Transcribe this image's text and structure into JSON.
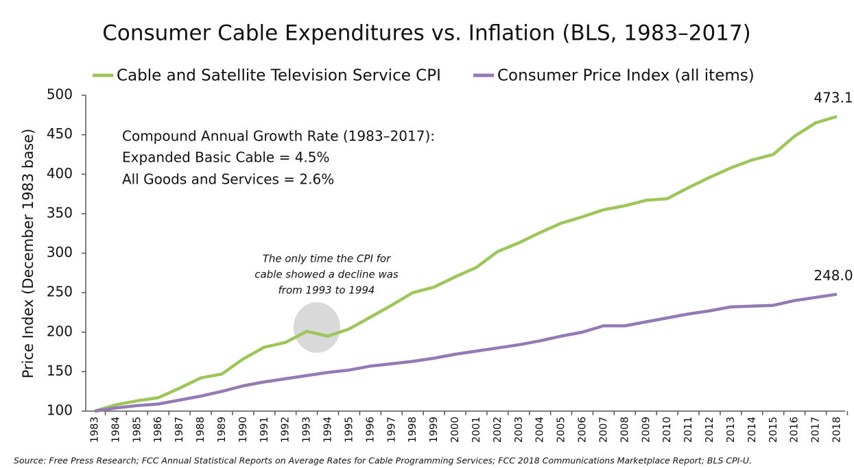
{
  "chart_data": {
    "type": "line",
    "title": "Consumer Cable Expenditures vs. Inflation (BLS, 1983–2017)",
    "y_label": "Price Index (December 1983 base)",
    "categories": [
      "1983",
      "1984",
      "1985",
      "1986",
      "1987",
      "1988",
      "1989",
      "1990",
      "1991",
      "1992",
      "1993",
      "1994",
      "1995",
      "1996",
      "1997",
      "1998",
      "1999",
      "2000",
      "2001",
      "2002",
      "2003",
      "2004",
      "2005",
      "2006",
      "2007",
      "2008",
      "2009",
      "2010",
      "2011",
      "2012",
      "2013",
      "2014",
      "2015",
      "2016",
      "2017",
      "2018"
    ],
    "series": [
      {
        "name": "Cable and Satellite Television Service CPI",
        "color": "#9dc55a",
        "values": [
          100,
          108,
          113,
          117,
          129,
          142,
          147,
          166,
          181,
          187,
          201,
          195,
          204,
          219,
          234,
          250,
          257,
          270,
          282,
          302,
          313,
          326,
          338,
          346,
          355,
          360,
          367,
          369,
          383,
          396,
          408,
          418,
          425,
          448,
          465,
          473.1
        ],
        "value_labels": [
          null,
          null,
          null,
          null,
          null,
          null,
          null,
          null,
          null,
          null,
          null,
          null,
          null,
          null,
          null,
          null,
          null,
          null,
          null,
          null,
          null,
          null,
          null,
          null,
          null,
          null,
          null,
          null,
          null,
          null,
          null,
          null,
          null,
          null,
          null,
          "473.1"
        ]
      },
      {
        "name": "Consumer Price Index (all items)",
        "color": "#9579b5",
        "values": [
          100,
          104,
          107,
          109,
          114,
          119,
          125,
          132,
          137,
          141,
          145,
          149,
          152,
          157,
          160,
          163,
          167,
          172,
          176,
          180,
          184,
          189,
          195,
          200,
          208,
          208,
          213,
          218,
          223,
          227,
          232,
          233,
          234,
          240,
          244,
          248
        ],
        "value_labels": [
          null,
          null,
          null,
          null,
          null,
          null,
          null,
          null,
          null,
          null,
          null,
          null,
          null,
          null,
          null,
          null,
          null,
          null,
          null,
          null,
          null,
          null,
          null,
          null,
          null,
          null,
          null,
          null,
          null,
          null,
          null,
          null,
          null,
          null,
          null,
          "248.0"
        ]
      }
    ],
    "ylim": [
      100,
      500
    ],
    "yticks": [
      100,
      150,
      200,
      250,
      300,
      350,
      400,
      450,
      500
    ],
    "annotations": {
      "cagr": [
        "Compound Annual Growth Rate (1983–2017):",
        "Expanded Basic Cable = 4.5%",
        "All Goods and Services = 2.6%"
      ],
      "note": [
        "The only time the CPI for",
        "cable showed a decline was",
        "from 1993 to 1994"
      ]
    },
    "source": "Source:  Free Press Research; FCC Annual Statistical Reports on Average Rates for Cable Programming Services; FCC 2018 Communications Marketplace Report; BLS CPI-U."
  }
}
